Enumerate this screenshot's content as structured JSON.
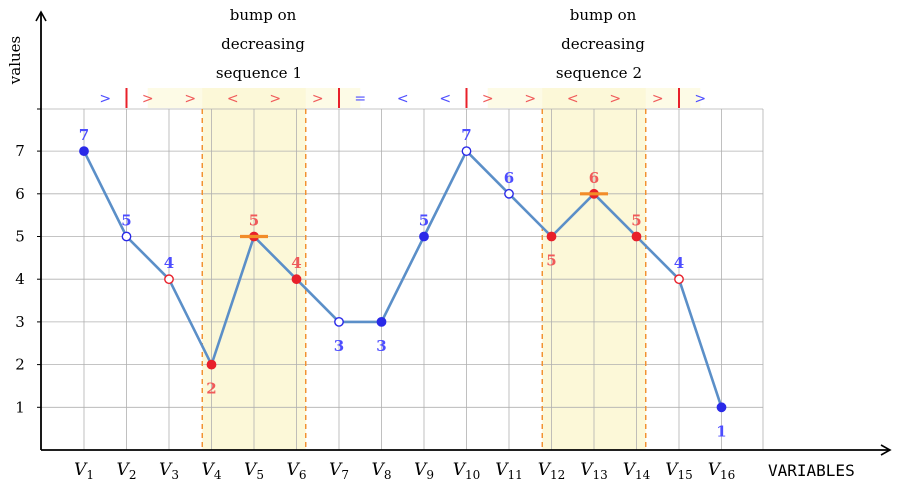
{
  "chart_data": {
    "type": "line",
    "ylabel": "values",
    "xlabel": "VARIABLES",
    "ylim": [
      0,
      8
    ],
    "y_ticks": [
      "1",
      "2",
      "3",
      "4",
      "5",
      "6",
      "7"
    ],
    "categories": [
      {
        "base": "V",
        "sub": "1"
      },
      {
        "base": "V",
        "sub": "2"
      },
      {
        "base": "V",
        "sub": "3"
      },
      {
        "base": "V",
        "sub": "4"
      },
      {
        "base": "V",
        "sub": "5"
      },
      {
        "base": "V",
        "sub": "6"
      },
      {
        "base": "V",
        "sub": "7"
      },
      {
        "base": "V",
        "sub": "8"
      },
      {
        "base": "V",
        "sub": "9"
      },
      {
        "base": "V",
        "sub": "10"
      },
      {
        "base": "V",
        "sub": "11"
      },
      {
        "base": "V",
        "sub": "12"
      },
      {
        "base": "V",
        "sub": "13"
      },
      {
        "base": "V",
        "sub": "14"
      },
      {
        "base": "V",
        "sub": "15"
      },
      {
        "base": "V",
        "sub": "16"
      }
    ],
    "values": [
      7,
      5,
      4,
      2,
      5,
      4,
      3,
      3,
      5,
      7,
      6,
      5,
      6,
      5,
      4,
      1
    ],
    "point_labels": [
      "7",
      "5",
      "4",
      "2",
      "5",
      "4",
      "3",
      "3",
      "5",
      "7",
      "6",
      "5",
      "6",
      "5",
      "4",
      "1"
    ],
    "label_position": [
      "above",
      "above",
      "above",
      "below",
      "above",
      "above",
      "below",
      "below",
      "above",
      "above",
      "above",
      "below",
      "above",
      "above",
      "above",
      "below"
    ],
    "point_style": [
      "filled-blue",
      "hollow-blue",
      "hollow-red",
      "filled-red",
      "filled-red",
      "filled-red",
      "hollow-blue",
      "filled-blue",
      "filled-blue",
      "hollow-blue",
      "hollow-blue",
      "filled-red",
      "filled-red",
      "filled-red",
      "hollow-red",
      "filled-blue"
    ],
    "label_color": [
      "blue",
      "blue",
      "blue",
      "red",
      "red",
      "red",
      "blue",
      "blue",
      "blue",
      "blue",
      "blue",
      "red",
      "red",
      "red",
      "blue",
      "blue"
    ],
    "signs": [
      ">",
      ">",
      ">",
      "<",
      ">",
      ">",
      "=",
      "<",
      "<",
      ">",
      ">",
      "<",
      ">",
      ">",
      ">"
    ],
    "sign_color": [
      "blue",
      "red",
      "red",
      "red",
      "red",
      "red",
      "blue",
      "blue",
      "blue",
      "red",
      "red",
      "red",
      "red",
      "red",
      "blue"
    ],
    "red_separators_after_point": [
      1,
      6,
      9,
      14
    ],
    "bumps": [
      {
        "title_lines": [
          "bump on",
          "decreasing",
          "sequence"
        ],
        "index": "1",
        "pattern_from": 1,
        "pattern_to": 6,
        "core_from": 3,
        "core_to": 5,
        "peak": 4
      },
      {
        "title_lines": [
          "bump on",
          "decreasing",
          "sequence"
        ],
        "index": "2",
        "pattern_from": 9,
        "pattern_to": 14,
        "core_from": 11,
        "core_to": 13,
        "peak": 12
      }
    ],
    "grid": true,
    "colors": {
      "blue": "#4d4dff",
      "red": "#f05a5a",
      "line": "#5b8fc8",
      "orange": "#f28c28",
      "band_light": "#fdfbe6",
      "band_dark": "#fcf8d8"
    }
  }
}
